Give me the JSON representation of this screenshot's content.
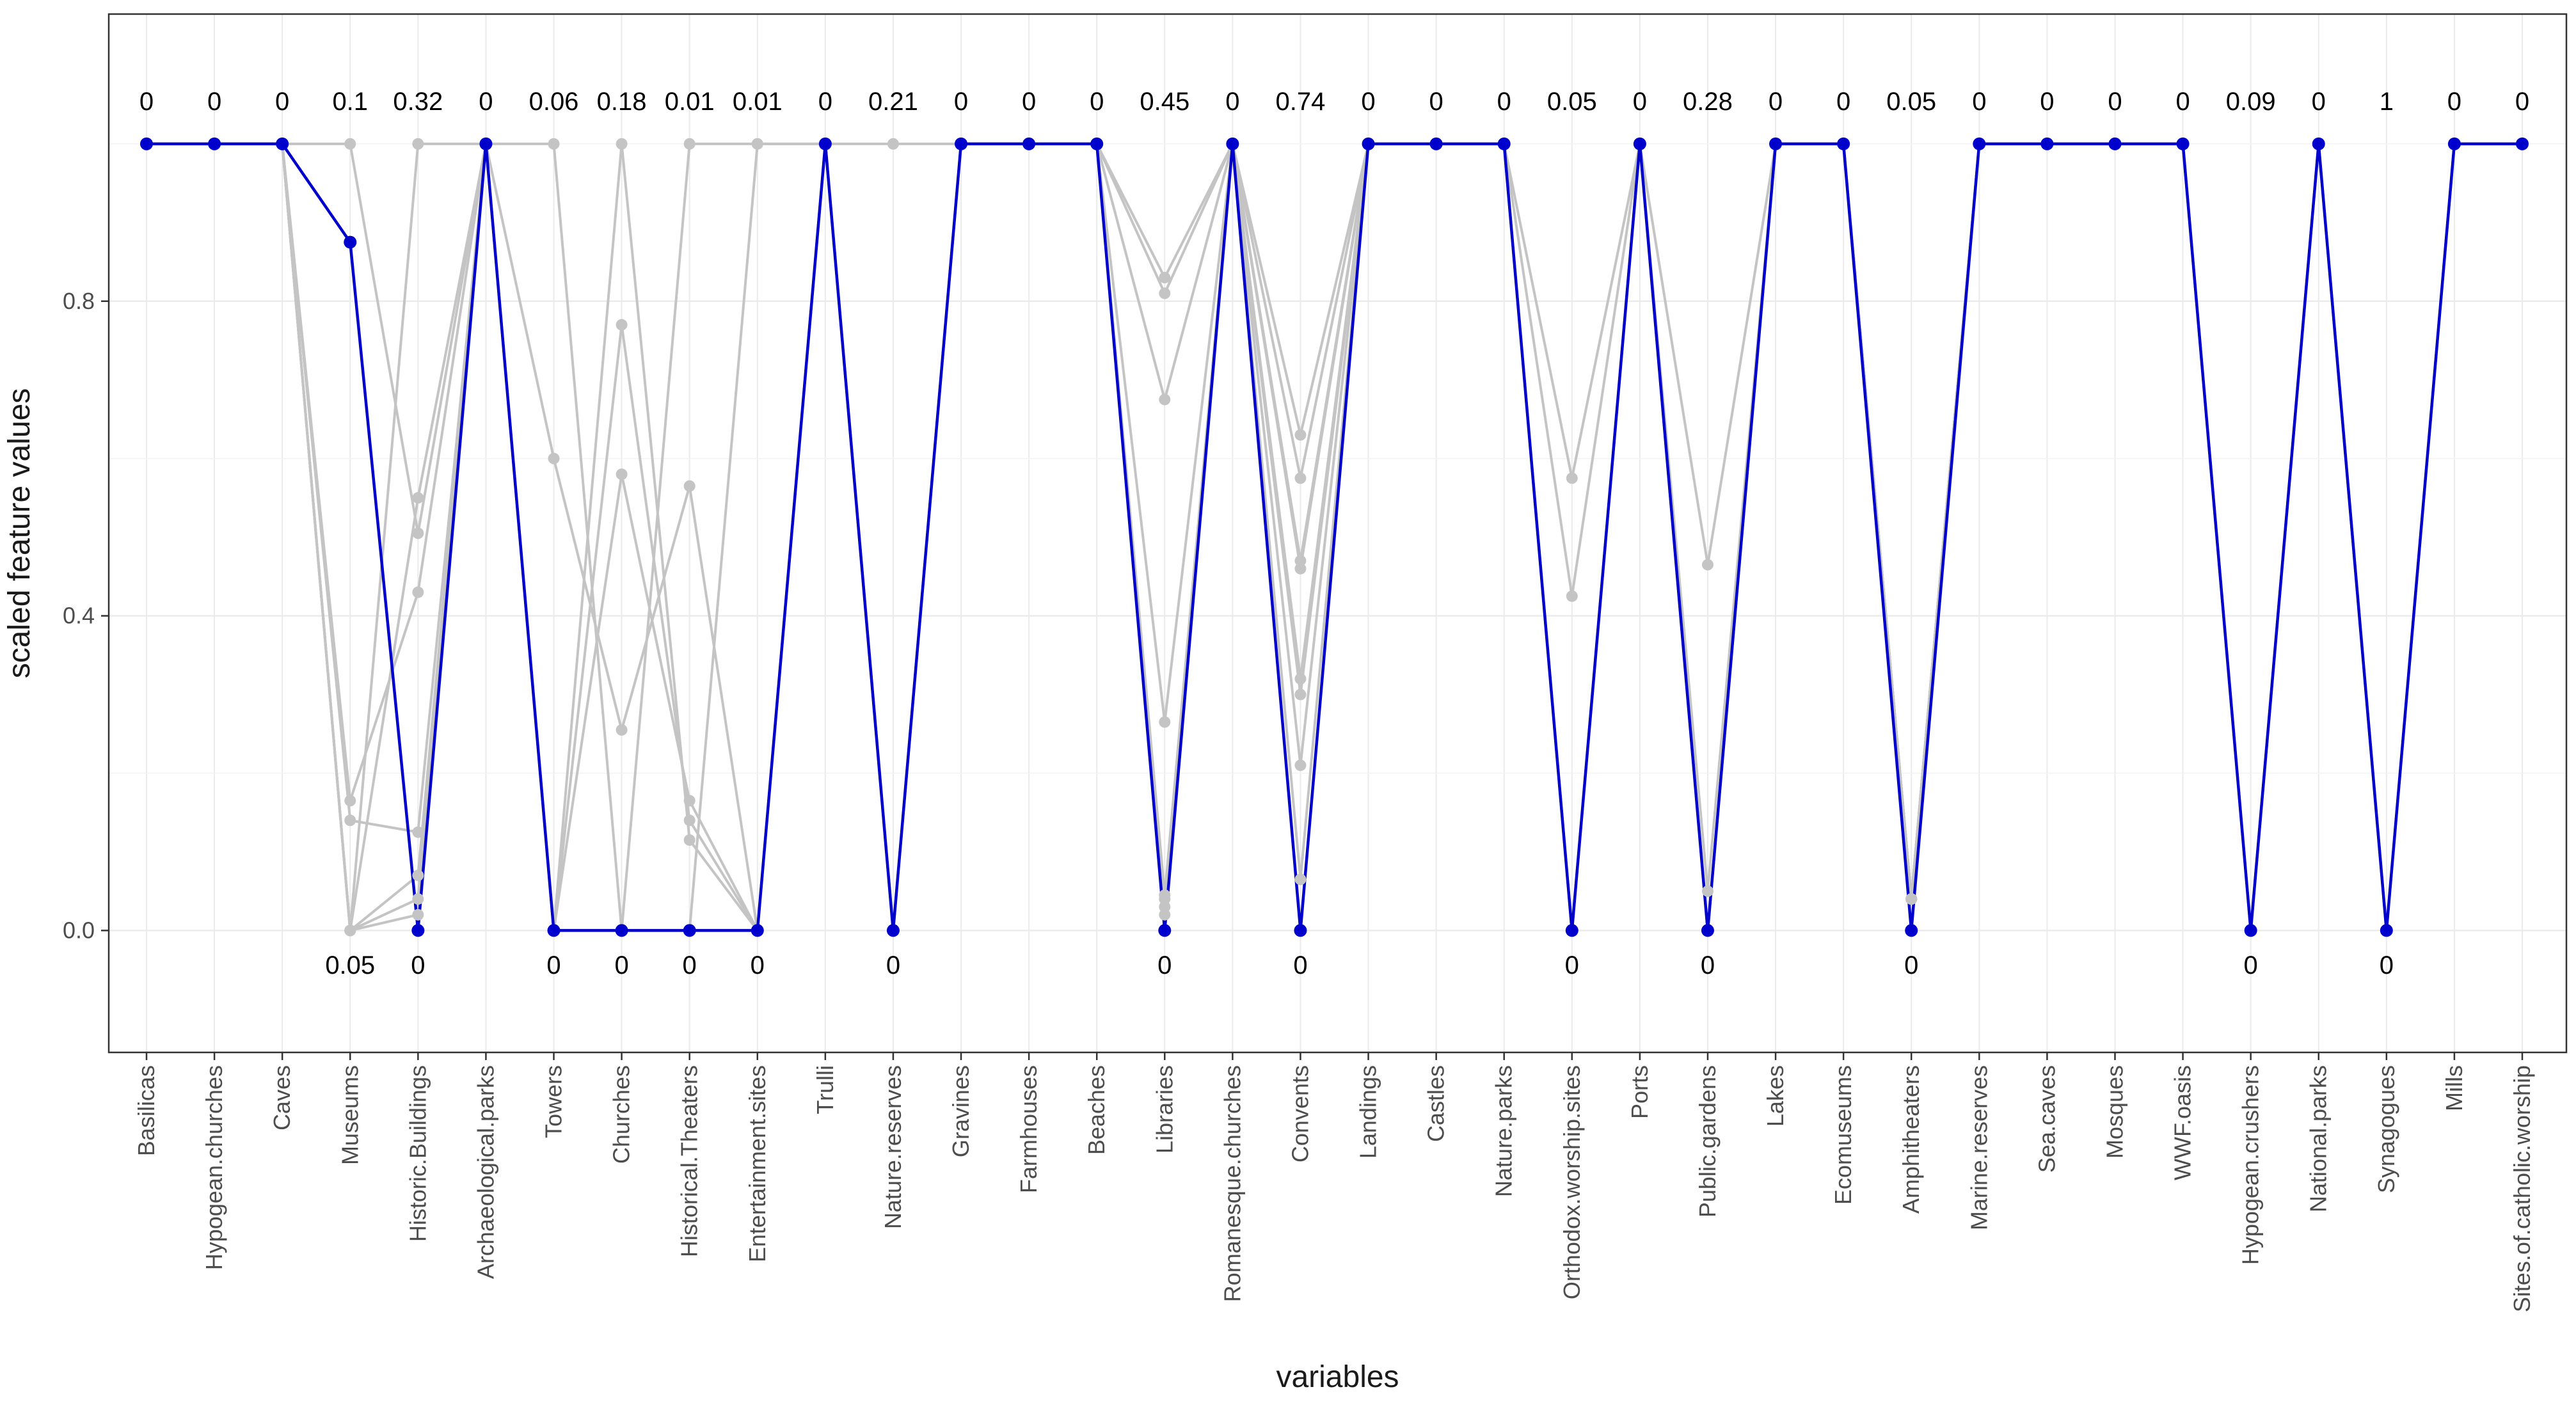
{
  "chart_data": {
    "type": "line",
    "xlabel": "variables",
    "ylabel": "scaled feature values",
    "ylim": [
      -0.155,
      1.165
    ],
    "yticks": [
      0.0,
      0.4,
      0.8
    ],
    "ytick_labels": [
      "0.0",
      "0.4",
      "0.8"
    ],
    "grid": true,
    "categories": [
      "Basilicas",
      "Hypogean.churches",
      "Caves",
      "Museums",
      "Historic.Buildings",
      "Archaeological.parks",
      "Towers",
      "Churches",
      "Historical.Theaters",
      "Entertainment.sites",
      "Trulli",
      "Nature.reserves",
      "Gravines",
      "Farmhouses",
      "Beaches",
      "Libraries",
      "Romanesque.churches",
      "Convents",
      "Landings",
      "Castles",
      "Nature.parks",
      "Orthodox.worship.sites",
      "Ports",
      "Public.gardens",
      "Lakes",
      "Ecomuseums",
      "Amphitheaters",
      "Marine.reserves",
      "Sea.caves",
      "Mosques",
      "WWF.oasis",
      "Hypogean.crushers",
      "National.parks",
      "Synagogues",
      "Mills",
      "Sites.of.catholic.worship"
    ],
    "top_labels": [
      "0",
      "0",
      "0",
      "0.1",
      "0.32",
      "0",
      "0.06",
      "0.18",
      "0.01",
      "0.01",
      "0",
      "0.21",
      "0",
      "0",
      "0",
      "0.45",
      "0",
      "0.74",
      "0",
      "0",
      "0",
      "0.05",
      "0",
      "0.28",
      "0",
      "0",
      "0.05",
      "0",
      "0",
      "0",
      "0",
      "0.09",
      "0",
      "1",
      "0",
      "0"
    ],
    "bottom_labels": [
      "",
      "",
      "",
      "0.05",
      "0",
      "",
      "0",
      "0",
      "0",
      "0",
      "",
      "0",
      "",
      "",
      "",
      "0",
      "",
      "0",
      "",
      "",
      "",
      "0",
      "",
      "0",
      "",
      "",
      "0",
      "",
      "",
      "",
      "",
      "0",
      "",
      "0",
      "",
      ""
    ],
    "series": [
      {
        "name": "highlighted",
        "color": "#0000cc",
        "values": [
          1,
          1,
          1,
          0.875,
          0,
          1,
          0,
          0,
          0,
          0,
          1,
          0,
          1,
          1,
          1,
          0,
          1,
          0,
          1,
          1,
          1,
          0,
          1,
          0,
          1,
          1,
          0,
          1,
          1,
          1,
          1,
          0,
          1,
          0,
          1,
          1
        ]
      },
      {
        "name": "other-1",
        "color": "#c4c4c4",
        "values": [
          1,
          1,
          1,
          0,
          0.55,
          1,
          0,
          0.77,
          0.14,
          0,
          1,
          0,
          1,
          1,
          1,
          0.83,
          1,
          0.63,
          1,
          1,
          1,
          0.575,
          1,
          0.465,
          1,
          1,
          0.04,
          1,
          1,
          1,
          1,
          0,
          1,
          0,
          1,
          1
        ]
      },
      {
        "name": "other-2",
        "color": "#c4c4c4",
        "values": [
          1,
          1,
          1,
          1,
          0.505,
          1,
          0.6,
          0.255,
          0.565,
          0,
          1,
          0,
          1,
          1,
          1,
          0.81,
          1,
          0.575,
          1,
          1,
          1,
          0.425,
          1,
          0.05,
          1,
          1,
          0.04,
          1,
          1,
          1,
          1,
          0,
          1,
          0,
          1,
          1
        ]
      },
      {
        "name": "other-3",
        "color": "#c4c4c4",
        "values": [
          1,
          1,
          1,
          0.165,
          0.43,
          1,
          0,
          0.58,
          0.165,
          0,
          1,
          0,
          1,
          1,
          1,
          0.675,
          1,
          0.47,
          1,
          1,
          1,
          0,
          1,
          0,
          1,
          1,
          0.04,
          1,
          1,
          1,
          1,
          0,
          1,
          0,
          1,
          1
        ]
      },
      {
        "name": "other-4",
        "color": "#c4c4c4",
        "values": [
          1,
          1,
          1,
          0.14,
          0.125,
          1,
          0,
          1,
          0.115,
          0,
          1,
          0,
          1,
          1,
          1,
          0.265,
          1,
          0.46,
          1,
          1,
          1,
          0,
          1,
          0,
          1,
          1,
          0.04,
          1,
          1,
          1,
          1,
          0,
          1,
          0,
          1,
          1
        ]
      },
      {
        "name": "other-5",
        "color": "#c4c4c4",
        "values": [
          1,
          1,
          1,
          0,
          0.07,
          1,
          1,
          0,
          1,
          1,
          1,
          1,
          1,
          1,
          1,
          0.045,
          1,
          0.32,
          1,
          1,
          1,
          0,
          1,
          0,
          1,
          1,
          0.04,
          1,
          1,
          1,
          1,
          0,
          1,
          0,
          1,
          1
        ]
      },
      {
        "name": "other-6",
        "color": "#c4c4c4",
        "values": [
          1,
          1,
          1,
          0,
          0.04,
          1,
          0,
          0,
          0,
          1,
          1,
          0,
          1,
          1,
          1,
          0.04,
          1,
          0.3,
          1,
          1,
          1,
          0,
          1,
          0,
          1,
          1,
          0.04,
          1,
          1,
          1,
          1,
          0,
          1,
          0,
          1,
          1
        ]
      },
      {
        "name": "other-7",
        "color": "#c4c4c4",
        "values": [
          1,
          1,
          1,
          0,
          0.02,
          1,
          0,
          0,
          0,
          0,
          1,
          0,
          1,
          1,
          1,
          0.03,
          1,
          0.21,
          1,
          1,
          1,
          0,
          1,
          0,
          1,
          1,
          0.04,
          1,
          1,
          1,
          1,
          0,
          1,
          0,
          1,
          1
        ]
      },
      {
        "name": "other-8",
        "color": "#c4c4c4",
        "values": [
          1,
          1,
          1,
          0,
          1,
          1,
          0,
          0,
          0,
          0,
          1,
          0,
          1,
          1,
          1,
          0.02,
          1,
          0.065,
          1,
          1,
          1,
          0,
          1,
          0,
          1,
          1,
          0.04,
          1,
          1,
          1,
          1,
          0,
          1,
          0,
          1,
          1
        ]
      }
    ]
  }
}
